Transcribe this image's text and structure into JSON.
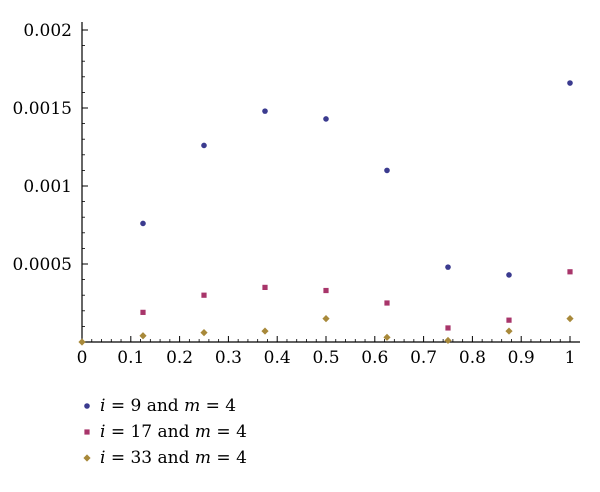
{
  "chart_data": {
    "type": "scatter",
    "title": "",
    "xlabel": "",
    "ylabel": "",
    "xlim": [
      0,
      1
    ],
    "ylim": [
      0,
      0.002
    ],
    "x_ticks": [
      0,
      0.1,
      0.2,
      0.3,
      0.4,
      0.5,
      0.6,
      0.7,
      0.8,
      0.9,
      1
    ],
    "x_tick_labels": [
      "0",
      "0.1",
      "0.2",
      "0.3",
      "0.4",
      "0.5",
      "0.6",
      "0.7",
      "0.8",
      "0.9",
      "1"
    ],
    "y_ticks": [
      0.0005,
      0.001,
      0.0015,
      0.002
    ],
    "y_tick_labels": [
      "0.0005",
      "0.001",
      "0.0015",
      "0.002"
    ],
    "grid": false,
    "legend_position": "bottom-left",
    "series": [
      {
        "name": "i = 9 and m = 4",
        "legend": {
          "var1": "i",
          "mid": " = 9 and ",
          "var2": "m",
          "tail": " = 4"
        },
        "marker": "circle",
        "color": "#3b3b8f",
        "x": [
          0.125,
          0.25,
          0.375,
          0.5,
          0.625,
          0.75,
          0.875,
          1
        ],
        "y": [
          0.00076,
          0.00126,
          0.00148,
          0.00143,
          0.0011,
          0.00048,
          0.00043,
          0.00166
        ]
      },
      {
        "name": "i = 17 and m = 4",
        "legend": {
          "var1": "i",
          "mid": " = 17 and ",
          "var2": "m",
          "tail": " = 4"
        },
        "marker": "square",
        "color": "#a8356a",
        "x": [
          0.125,
          0.25,
          0.375,
          0.5,
          0.625,
          0.75,
          0.875,
          1
        ],
        "y": [
          0.00019,
          0.0003,
          0.00035,
          0.00033,
          0.00025,
          9e-05,
          0.00014,
          0.00045
        ]
      },
      {
        "name": "i = 33 and m = 4",
        "legend": {
          "var1": "i",
          "mid": " = 33 and ",
          "var2": "m",
          "tail": " = 4"
        },
        "marker": "diamond",
        "color": "#a8893a",
        "x": [
          0,
          0.125,
          0.25,
          0.375,
          0.5,
          0.625,
          0.75,
          0.875,
          1
        ],
        "y": [
          0,
          4e-05,
          6e-05,
          7e-05,
          0.00015,
          3e-05,
          1e-05,
          7e-05,
          0.00015
        ]
      }
    ]
  }
}
